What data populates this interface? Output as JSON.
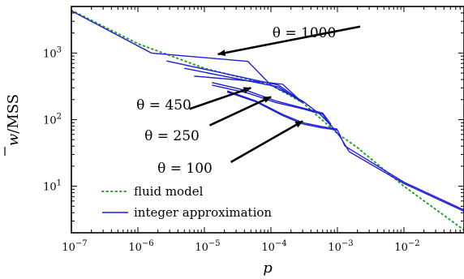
{
  "chart_data": {
    "type": "line",
    "xlabel": "p",
    "ylabel_parts": {
      "base": "w",
      "suffix": "/MSS"
    },
    "xscale": "log",
    "yscale": "log",
    "xlim": [
      1e-07,
      0.08
    ],
    "ylim": [
      2,
      5000
    ],
    "x_ticks": [
      {
        "value": 1e-07,
        "base": "10",
        "exp": "−7"
      },
      {
        "value": 1e-06,
        "base": "10",
        "exp": "−6"
      },
      {
        "value": 1e-05,
        "base": "10",
        "exp": "−5"
      },
      {
        "value": 0.0001,
        "base": "10",
        "exp": "−4"
      },
      {
        "value": 0.001,
        "base": "10",
        "exp": "−3"
      },
      {
        "value": 0.01,
        "base": "10",
        "exp": "−2"
      }
    ],
    "y_ticks": [
      {
        "value": 10,
        "base": "10",
        "exp": "1"
      },
      {
        "value": 100,
        "base": "10",
        "exp": "2"
      },
      {
        "value": 1000,
        "base": "10",
        "exp": "3"
      }
    ],
    "legend": {
      "placement": "bottom-left",
      "entries": [
        {
          "label": "fluid model",
          "style": "dotted",
          "color": "#2ca02c"
        },
        {
          "label": "integer approximation",
          "style": "solid",
          "color": "#1f1fd6"
        }
      ]
    },
    "series": [
      {
        "style": "fluid",
        "color": "#2ca02c",
        "points": [
          [
            1e-07,
            4400
          ],
          [
            1e-06,
            1380
          ],
          [
            1e-05,
            590
          ],
          [
            0.0001,
            330
          ],
          [
            0.0003,
            180
          ],
          [
            0.001,
            62
          ],
          [
            0.002,
            38
          ],
          [
            0.01,
            10
          ],
          [
            0.08,
            2.2
          ]
        ]
      },
      {
        "style": "integer",
        "color": "#1f1fd6",
        "points": [
          [
            1e-07,
            4300
          ],
          [
            1.6e-06,
            1000
          ],
          [
            4.5e-05,
            750
          ],
          [
            0.0001,
            330
          ],
          [
            0.0003,
            190
          ],
          [
            0.00055,
            120
          ],
          [
            0.0008,
            82
          ],
          [
            0.0011,
            55
          ],
          [
            0.0015,
            33
          ],
          [
            0.01,
            11
          ],
          [
            0.08,
            4.2
          ]
        ]
      },
      {
        "style": "integer",
        "color": "#1f1fd6",
        "points": [
          [
            2.7e-06,
            760
          ],
          [
            0.00013,
            330
          ],
          [
            0.0003,
            185
          ]
        ]
      },
      {
        "style": "integer",
        "color": "#1f1fd6",
        "points": [
          [
            5e-06,
            590
          ],
          [
            0.00013,
            310
          ],
          [
            0.0003,
            180
          ]
        ]
      },
      {
        "style": "integer",
        "color": "#1f1fd6",
        "points": [
          [
            7e-06,
            450
          ],
          [
            5e-05,
            380
          ],
          [
            9e-05,
            360
          ],
          [
            0.00015,
            340
          ],
          [
            0.0003,
            180
          ]
        ]
      },
      {
        "style": "integer",
        "color": "#1f1fd6",
        "points": [
          [
            1.3e-05,
            360
          ],
          [
            4.5e-05,
            270
          ],
          [
            0.00012,
            190
          ],
          [
            0.0003,
            150
          ],
          [
            0.0006,
            125
          ],
          [
            0.0008,
            85
          ]
        ]
      },
      {
        "style": "integer",
        "color": "#1f1fd6",
        "points": [
          [
            1.3e-05,
            330
          ],
          [
            4.5e-05,
            250
          ],
          [
            0.00012,
            180
          ],
          [
            0.0003,
            145
          ],
          [
            0.0006,
            120
          ],
          [
            0.0008,
            80
          ]
        ]
      },
      {
        "style": "integer",
        "color": "#1f1fd6",
        "points": [
          [
            2.2e-05,
            270
          ],
          [
            6e-05,
            190
          ],
          [
            0.00015,
            120
          ],
          [
            0.0003,
            90
          ],
          [
            0.0006,
            78
          ],
          [
            0.001,
            72
          ]
        ]
      },
      {
        "style": "integer",
        "color": "#1f1fd6",
        "points": [
          [
            2.2e-05,
            260
          ],
          [
            6e-05,
            185
          ],
          [
            0.00015,
            115
          ],
          [
            0.0003,
            86
          ],
          [
            0.0006,
            75
          ],
          [
            0.001,
            70
          ],
          [
            0.0013,
            40
          ],
          [
            0.01,
            11.5
          ],
          [
            0.08,
            4.4
          ]
        ]
      }
    ],
    "annotations": [
      {
        "text": "θ = 1000",
        "from": [
          0.0022,
          2500
        ],
        "to": [
          1.6e-05,
          960
        ]
      },
      {
        "text": "θ = 450",
        "from": [
          6e-06,
          145
        ],
        "to": [
          5e-05,
          300
        ]
      },
      {
        "text": "θ = 250",
        "from": [
          1.2e-05,
          82
        ],
        "to": [
          0.0001,
          220
        ]
      },
      {
        "text": "θ = 100",
        "from": [
          2.5e-05,
          23
        ],
        "to": [
          0.0003,
          95
        ]
      }
    ]
  }
}
